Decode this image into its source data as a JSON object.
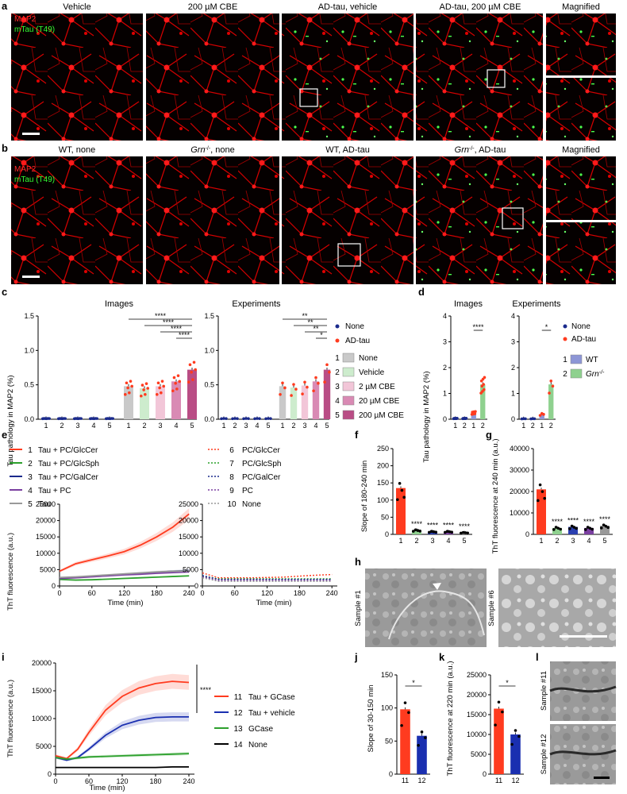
{
  "panels": {
    "a": {
      "letter": "a",
      "titles": [
        "Vehicle",
        "200 µM CBE",
        "AD-tau, vehicle",
        "AD-tau, 200 µM CBE",
        "Magnified"
      ],
      "legend": [
        "MAP2",
        "mTau (T49)"
      ]
    },
    "b": {
      "letter": "b",
      "titles": [
        "WT, none",
        "Grn",
        ", none",
        "WT, AD-tau",
        "Grn",
        ", AD-tau",
        "Magnified"
      ],
      "superscript": "-/-",
      "legend": [
        "MAP2",
        "mTau (T49)"
      ]
    },
    "c": {
      "letter": "c",
      "ylabel": "Tau pathology in MAP2 (%)",
      "subtitles": [
        "Images",
        "Experiments"
      ],
      "legend": {
        "dots": [
          "None",
          "AD-tau"
        ],
        "items": [
          {
            "num": "1",
            "label": "None",
            "color": "#c9c9c9"
          },
          {
            "num": "2",
            "label": "Vehicle",
            "color": "#cdeccd"
          },
          {
            "num": "3",
            "label": "2 µM CBE",
            "color": "#f2c6d8"
          },
          {
            "num": "4",
            "label": "20 µM CBE",
            "color": "#d98ab4"
          },
          {
            "num": "5",
            "label": "200 µM CBE",
            "color": "#b94d85"
          }
        ]
      }
    },
    "d": {
      "letter": "d",
      "ylabel": "Tau pathology in MAP2 (%)",
      "subtitles": [
        "Images",
        "Experiments"
      ],
      "legend": {
        "dots": [
          "None",
          "AD-tau"
        ],
        "items": [
          {
            "num": "1",
            "label": "WT",
            "color": "#8d96d6"
          },
          {
            "num": "2",
            "label": "Grn",
            "sup": "-/-",
            "color": "#8fd18f"
          }
        ]
      }
    },
    "e": {
      "letter": "e",
      "ylabel": "ThT fluorescence (a.u.)",
      "xlabel": "Time (min)",
      "legend_left": [
        {
          "num": "1",
          "label": "Tau + PC/GlcCer",
          "color": "#ff3b1f"
        },
        {
          "num": "2",
          "label": "Tau + PC/GlcSph",
          "color": "#2ca02c"
        },
        {
          "num": "3",
          "label": "Tau + PC/GalCer",
          "color": "#1a2a8c"
        },
        {
          "num": "4",
          "label": "Tau + PC",
          "color": "#7a3fa0"
        },
        {
          "num": "5",
          "label": "Tau",
          "color": "#999999"
        }
      ],
      "legend_right": [
        {
          "num": "6",
          "label": "PC/GlcCer",
          "color": "#ff3b1f"
        },
        {
          "num": "7",
          "label": "PC/GlcSph",
          "color": "#2ca02c"
        },
        {
          "num": "8",
          "label": "PC/GalCer",
          "color": "#1a2a8c"
        },
        {
          "num": "9",
          "label": "PC",
          "color": "#7a3fa0"
        },
        {
          "num": "10",
          "label": "None",
          "color": "#999999"
        }
      ]
    },
    "f": {
      "letter": "f",
      "ylabel": "Slope of 180-240 min"
    },
    "g": {
      "letter": "g",
      "ylabel": "ThT fluorescence at 240 min (a.u.)"
    },
    "h": {
      "letter": "h",
      "labels": [
        "Sample #1",
        "Sample #6"
      ]
    },
    "i": {
      "letter": "i",
      "ylabel": "ThT fluorescence (a.u.)",
      "xlabel": "Time (min)",
      "sig": "****",
      "legend": [
        {
          "num": "11",
          "label": "Tau + GCase",
          "color": "#ff3b1f"
        },
        {
          "num": "12",
          "label": "Tau + vehicle",
          "color": "#1a2fb0"
        },
        {
          "num": "13",
          "label": "GCase",
          "color": "#2ca02c"
        },
        {
          "num": "14",
          "label": "None",
          "color": "#000000"
        }
      ]
    },
    "j": {
      "letter": "j",
      "ylabel": "Slope of 30-150 min"
    },
    "k": {
      "letter": "k",
      "ylabel": "ThT fluorescence at 220 min (a.u.)"
    },
    "l": {
      "letter": "l",
      "labels": [
        "Sample #11",
        "Sample #12"
      ]
    }
  },
  "chart_data": [
    {
      "id": "c-images",
      "type": "bar",
      "title": "Images",
      "categories": [
        "1",
        "2",
        "3",
        "4",
        "5",
        "1",
        "2",
        "3",
        "4",
        "5"
      ],
      "values": [
        0.01,
        0.01,
        0.01,
        0.01,
        0.01,
        0.48,
        0.45,
        0.48,
        0.55,
        0.72
      ],
      "ylim": [
        0,
        1.5
      ],
      "yticks": [
        0.0,
        0.5,
        1.0,
        1.5
      ],
      "significance": [
        "****",
        "****",
        "****",
        "****"
      ]
    },
    {
      "id": "c-experiments",
      "type": "bar",
      "title": "Experiments",
      "categories": [
        "1",
        "2",
        "3",
        "4",
        "5",
        "1",
        "2",
        "3",
        "4",
        "5"
      ],
      "values": [
        0.01,
        0.01,
        0.01,
        0.01,
        0.01,
        0.48,
        0.46,
        0.49,
        0.55,
        0.72
      ],
      "ylim": [
        0,
        1.5
      ],
      "yticks": [
        0.0,
        0.5,
        1.0,
        1.5
      ],
      "significance": [
        "**",
        "**",
        "**",
        "*"
      ]
    },
    {
      "id": "d-images",
      "type": "bar",
      "title": "Images",
      "categories": [
        "1",
        "2",
        "1",
        "2"
      ],
      "values": [
        0.03,
        0.03,
        0.25,
        1.35
      ],
      "ylim": [
        0,
        4
      ],
      "yticks": [
        0,
        1,
        2,
        3,
        4
      ],
      "significance": [
        "****"
      ]
    },
    {
      "id": "d-experiments",
      "type": "bar",
      "title": "Experiments",
      "categories": [
        "1",
        "2",
        "1",
        "2"
      ],
      "values": [
        0.02,
        0.02,
        0.2,
        1.35
      ],
      "ylim": [
        0,
        4
      ],
      "yticks": [
        0,
        1,
        2,
        3,
        4
      ],
      "significance": [
        "*"
      ]
    },
    {
      "id": "e-left",
      "type": "line",
      "ylim": [
        0,
        25000
      ],
      "yticks": [
        0,
        5000,
        10000,
        15000,
        20000,
        25000
      ],
      "xlim": [
        0,
        250
      ],
      "xticks": [
        0,
        60,
        120,
        180,
        240
      ],
      "x": [
        0,
        30,
        60,
        90,
        120,
        150,
        180,
        210,
        240
      ],
      "series": [
        {
          "name": "1 Tau + PC/GlcCer",
          "values": [
            4500,
            6800,
            8000,
            9200,
            10500,
            12500,
            15000,
            18000,
            22000
          ]
        },
        {
          "name": "2 Tau + PC/GlcSph",
          "values": [
            2000,
            1800,
            1900,
            2100,
            2300,
            2500,
            2700,
            2900,
            3100
          ]
        },
        {
          "name": "3 Tau + PC/GalCer",
          "values": [
            2400,
            2700,
            3000,
            3300,
            3600,
            3900,
            4200,
            4500,
            4700
          ]
        },
        {
          "name": "4 Tau + PC",
          "values": [
            2300,
            2500,
            2800,
            3100,
            3400,
            3600,
            3900,
            4100,
            4300
          ]
        },
        {
          "name": "5 Tau",
          "values": [
            2600,
            2800,
            3100,
            3400,
            3700,
            4000,
            4300,
            4500,
            4600
          ]
        }
      ]
    },
    {
      "id": "e-right",
      "type": "line",
      "ylim": [
        0,
        25000
      ],
      "yticks": [
        0,
        5000,
        10000,
        15000,
        20000,
        25000
      ],
      "xlim": [
        0,
        250
      ],
      "xticks": [
        0,
        60,
        120,
        180,
        240
      ],
      "x": [
        0,
        30,
        60,
        90,
        120,
        150,
        180,
        210,
        240
      ],
      "series": [
        {
          "name": "6 PC/GlcCer",
          "values": [
            4000,
            2500,
            2500,
            2500,
            2600,
            2700,
            3000,
            3300,
            3500
          ]
        },
        {
          "name": "7 PC/GlcSph",
          "values": [
            3000,
            2200,
            2200,
            2200,
            2200,
            2200,
            2200,
            2200,
            2200
          ]
        },
        {
          "name": "8 PC/GalCer",
          "values": [
            3200,
            2000,
            2000,
            2000,
            2000,
            2000,
            2000,
            2000,
            2000
          ]
        },
        {
          "name": "9 PC",
          "values": [
            2800,
            1700,
            1700,
            1700,
            1700,
            1700,
            1700,
            1700,
            1700
          ]
        },
        {
          "name": "10 None",
          "values": [
            2500,
            1400,
            1400,
            1400,
            1400,
            1400,
            1400,
            1400,
            1400
          ]
        }
      ]
    },
    {
      "id": "f",
      "type": "bar",
      "categories": [
        "1",
        "2",
        "3",
        "4",
        "5"
      ],
      "values": [
        135,
        12,
        8,
        8,
        5
      ],
      "ylim": [
        0,
        250
      ],
      "yticks": [
        0,
        50,
        100,
        150,
        200,
        250
      ],
      "significance": [
        "",
        "****",
        "****",
        "****",
        "****"
      ]
    },
    {
      "id": "g",
      "type": "bar",
      "categories": [
        "1",
        "2",
        "3",
        "4",
        "5"
      ],
      "values": [
        21000,
        3000,
        3500,
        3000,
        4000
      ],
      "ylim": [
        0,
        40000
      ],
      "yticks": [
        0,
        10000,
        20000,
        30000,
        40000
      ],
      "significance": [
        "",
        "****",
        "****",
        "****",
        "****"
      ]
    },
    {
      "id": "i",
      "type": "line",
      "ylim": [
        0,
        20000
      ],
      "yticks": [
        0,
        5000,
        10000,
        15000,
        20000
      ],
      "xlim": [
        0,
        250
      ],
      "xticks": [
        0,
        60,
        120,
        180,
        240
      ],
      "x": [
        0,
        20,
        40,
        60,
        90,
        120,
        150,
        180,
        210,
        240
      ],
      "series": [
        {
          "name": "11 Tau + GCase",
          "values": [
            3300,
            2800,
            4500,
            7500,
            11500,
            14000,
            15500,
            16300,
            16700,
            16500
          ]
        },
        {
          "name": "12 Tau + vehicle",
          "values": [
            3000,
            2500,
            3000,
            4500,
            7000,
            8800,
            9700,
            10200,
            10300,
            10300
          ]
        },
        {
          "name": "13 GCase",
          "values": [
            3000,
            2700,
            2900,
            3100,
            3200,
            3300,
            3400,
            3500,
            3600,
            3700
          ]
        },
        {
          "name": "14 None",
          "values": [
            1200,
            1200,
            1200,
            1200,
            1200,
            1200,
            1200,
            1200,
            1300,
            1300
          ]
        }
      ]
    },
    {
      "id": "j",
      "type": "bar",
      "categories": [
        "11",
        "12"
      ],
      "values": [
        98,
        58
      ],
      "ylim": [
        0,
        150
      ],
      "yticks": [
        0,
        50,
        100,
        150
      ],
      "significance": [
        "*"
      ]
    },
    {
      "id": "k",
      "type": "bar",
      "categories": [
        "11",
        "12"
      ],
      "values": [
        16500,
        10000
      ],
      "ylim": [
        0,
        25000
      ],
      "yticks": [
        0,
        5000,
        10000,
        15000,
        20000,
        25000
      ],
      "significance": [
        "*"
      ]
    }
  ]
}
